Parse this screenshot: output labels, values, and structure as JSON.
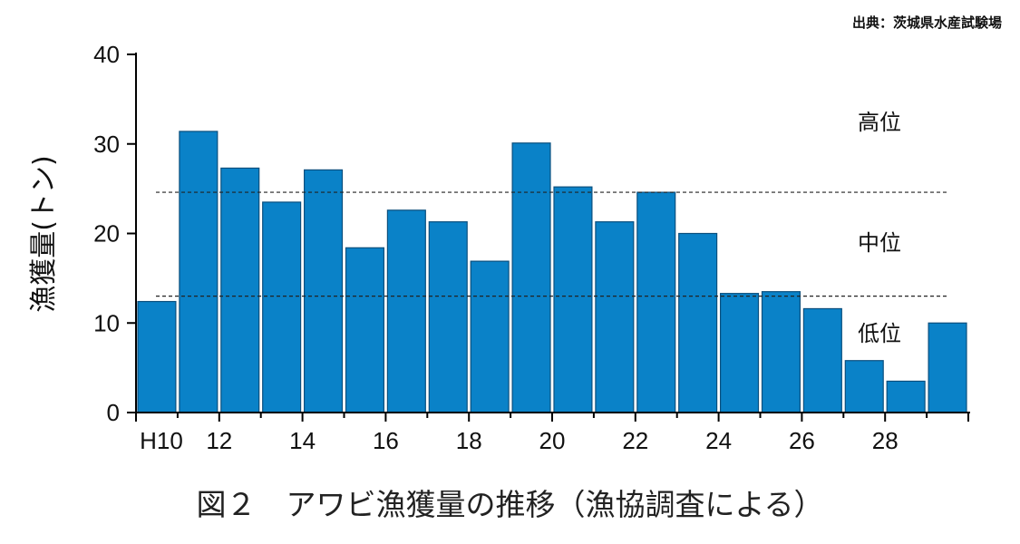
{
  "source": "出典：茨城県水産試験場",
  "caption": "図２　アワビ漁獲量の推移（漁協調査による）",
  "chart_data": {
    "type": "bar",
    "ylabel": "漁獲量(トン)",
    "ylim": [
      0,
      40
    ],
    "yticks": [
      0,
      10,
      20,
      30,
      40
    ],
    "categories": [
      "H10",
      "H11",
      "H12",
      "H13",
      "H14",
      "H15",
      "H16",
      "H17",
      "H18",
      "H19",
      "H20",
      "H21",
      "H22",
      "H23",
      "H24",
      "H25",
      "H26",
      "H27",
      "H28",
      "H29"
    ],
    "xtick_labels": [
      "H10",
      "12",
      "14",
      "16",
      "18",
      "20",
      "22",
      "24",
      "26",
      "28"
    ],
    "values": [
      12.4,
      31.4,
      27.3,
      23.5,
      27.1,
      18.4,
      22.6,
      21.3,
      16.9,
      30.1,
      25.2,
      21.3,
      24.6,
      20.0,
      13.3,
      13.5,
      11.6,
      5.8,
      3.5,
      10.0
    ],
    "bar_color": "#0a82c8",
    "thresholds": [
      24.6,
      13.0
    ],
    "zone_labels": [
      "高位",
      "中位",
      "低位"
    ]
  }
}
